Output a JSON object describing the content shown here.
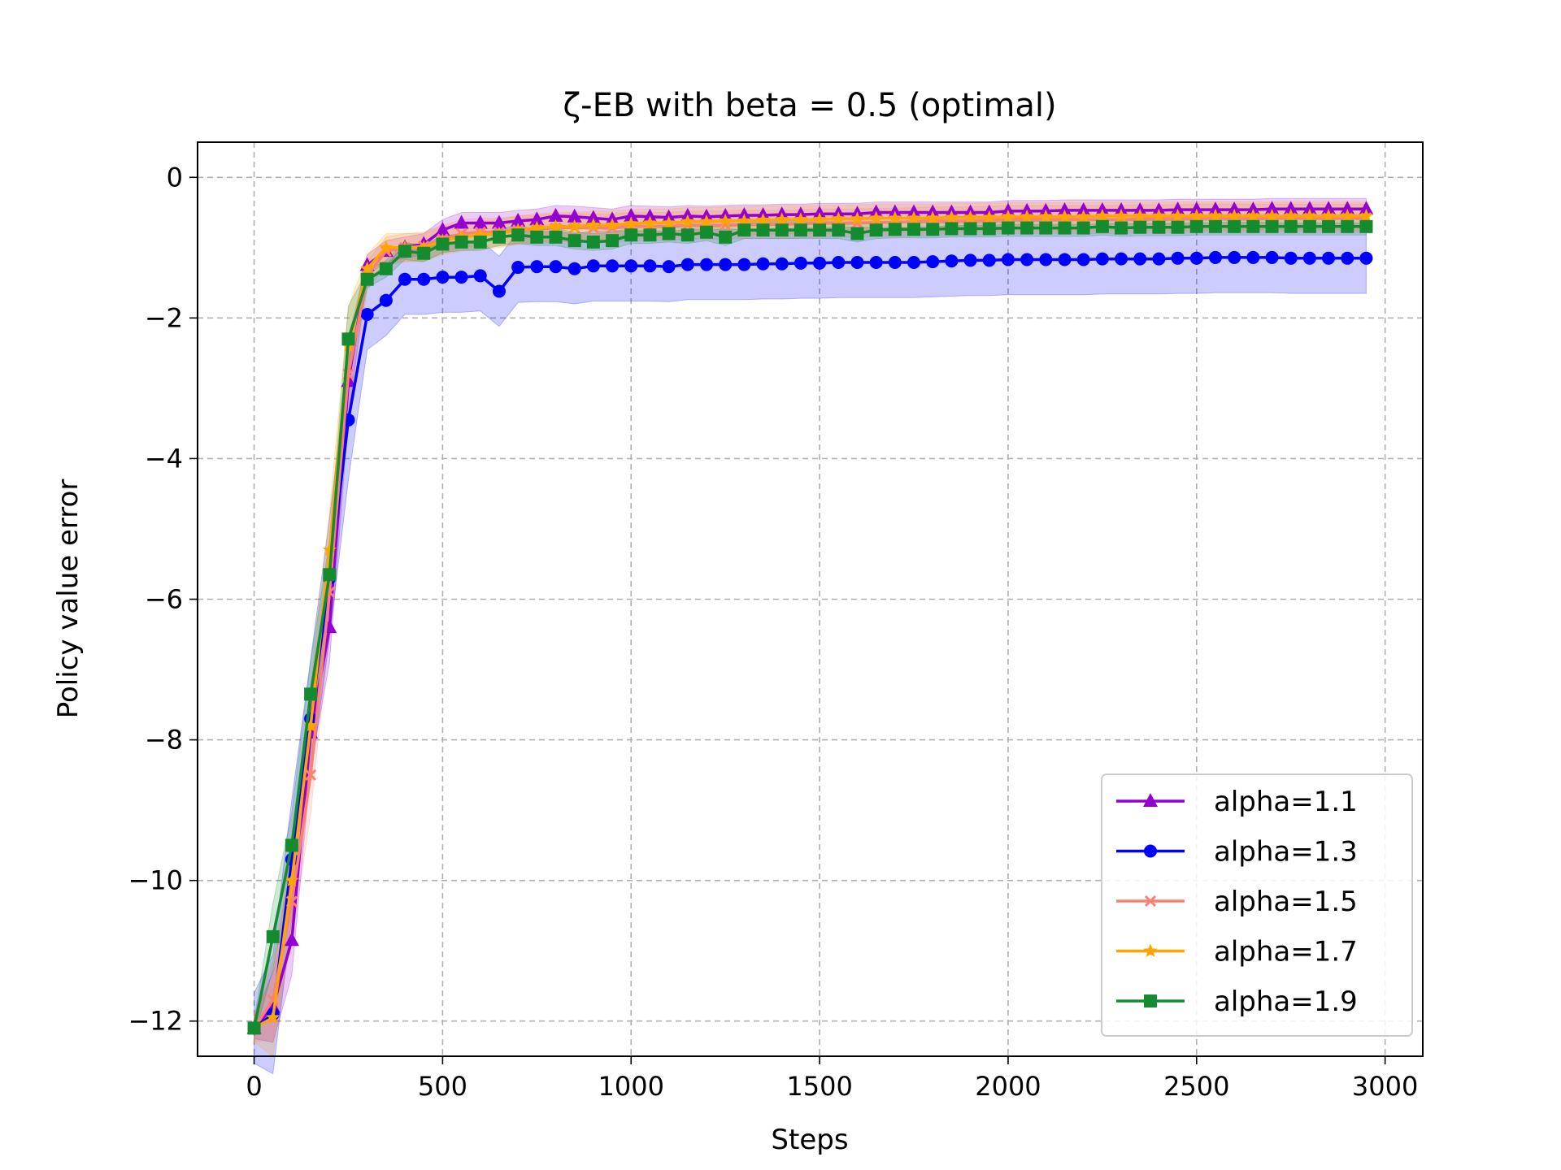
{
  "chart_data": {
    "type": "line",
    "title": "ζ-EB with beta = 0.5 (optimal)",
    "xlabel": "Steps",
    "ylabel": "Policy value error",
    "xlim": [
      -150,
      3100
    ],
    "ylim": [
      -12.5,
      0.5
    ],
    "xticks": [
      0,
      500,
      1000,
      1500,
      2000,
      2500,
      3000
    ],
    "yticks": [
      0,
      -2,
      -4,
      -6,
      -8,
      -10,
      -12
    ],
    "xtick_labels": [
      "0",
      "500",
      "1000",
      "1500",
      "2000",
      "2500",
      "3000"
    ],
    "ytick_labels": [
      "0",
      "−2",
      "−4",
      "−6",
      "−8",
      "−10",
      "−12"
    ],
    "grid": true,
    "legend_position": "lower-right",
    "x": [
      0,
      50,
      100,
      150,
      200,
      250,
      300,
      350,
      400,
      450,
      500,
      550,
      600,
      650,
      700,
      750,
      800,
      850,
      900,
      950,
      1000,
      1050,
      1100,
      1150,
      1200,
      1250,
      1300,
      1350,
      1400,
      1450,
      1500,
      1550,
      1600,
      1650,
      1700,
      1750,
      1800,
      1850,
      1900,
      1950,
      2000,
      2050,
      2100,
      2150,
      2200,
      2250,
      2300,
      2350,
      2400,
      2450,
      2500,
      2550,
      2600,
      2650,
      2700,
      2750,
      2800,
      2850,
      2900,
      2950
    ],
    "series": [
      {
        "name": "alpha=1.1",
        "color": "#9400d3",
        "marker": "triangle",
        "values": [
          -12.1,
          -11.8,
          -10.85,
          -7.9,
          -6.4,
          -2.9,
          -1.25,
          -1.05,
          -1.0,
          -0.95,
          -0.75,
          -0.65,
          -0.65,
          -0.65,
          -0.62,
          -0.6,
          -0.55,
          -0.56,
          -0.58,
          -0.6,
          -0.55,
          -0.56,
          -0.57,
          -0.55,
          -0.56,
          -0.55,
          -0.54,
          -0.54,
          -0.53,
          -0.53,
          -0.52,
          -0.52,
          -0.52,
          -0.5,
          -0.5,
          -0.5,
          -0.5,
          -0.5,
          -0.5,
          -0.5,
          -0.48,
          -0.48,
          -0.48,
          -0.47,
          -0.47,
          -0.47,
          -0.47,
          -0.47,
          -0.47,
          -0.46,
          -0.46,
          -0.46,
          -0.46,
          -0.46,
          -0.45,
          -0.45,
          -0.45,
          -0.45,
          -0.45,
          -0.45
        ],
        "band": 0.15
      },
      {
        "name": "alpha=1.3",
        "color": "#0000ff",
        "marker": "circle",
        "values": [
          -12.1,
          -11.9,
          -9.7,
          -7.7,
          -5.7,
          -3.45,
          -1.95,
          -1.75,
          -1.45,
          -1.45,
          -1.42,
          -1.42,
          -1.4,
          -1.62,
          -1.28,
          -1.27,
          -1.27,
          -1.3,
          -1.26,
          -1.26,
          -1.26,
          -1.26,
          -1.27,
          -1.24,
          -1.24,
          -1.24,
          -1.24,
          -1.23,
          -1.23,
          -1.22,
          -1.22,
          -1.21,
          -1.21,
          -1.21,
          -1.21,
          -1.21,
          -1.2,
          -1.19,
          -1.18,
          -1.18,
          -1.17,
          -1.17,
          -1.17,
          -1.17,
          -1.17,
          -1.16,
          -1.16,
          -1.16,
          -1.16,
          -1.15,
          -1.15,
          -1.14,
          -1.14,
          -1.14,
          -1.14,
          -1.15,
          -1.15,
          -1.15,
          -1.15,
          -1.15
        ],
        "band": 0.5
      },
      {
        "name": "alpha=1.5",
        "color": "#fa8072",
        "marker": "x",
        "values": [
          -12.1,
          -11.7,
          -10.3,
          -8.5,
          -5.9,
          -2.8,
          -1.4,
          -1.05,
          -1.0,
          -0.98,
          -0.88,
          -0.8,
          -0.78,
          -0.78,
          -0.75,
          -0.74,
          -0.72,
          -0.72,
          -0.72,
          -0.72,
          -0.7,
          -0.7,
          -0.7,
          -0.68,
          -0.68,
          -0.68,
          -0.67,
          -0.67,
          -0.67,
          -0.66,
          -0.65,
          -0.65,
          -0.65,
          -0.64,
          -0.64,
          -0.63,
          -0.62,
          -0.62,
          -0.62,
          -0.61,
          -0.6,
          -0.6,
          -0.6,
          -0.6,
          -0.6,
          -0.6,
          -0.6,
          -0.59,
          -0.59,
          -0.59,
          -0.58,
          -0.58,
          -0.58,
          -0.58,
          -0.58,
          -0.58,
          -0.58,
          -0.58,
          -0.58,
          -0.58
        ],
        "band": 0.2
      },
      {
        "name": "alpha=1.7",
        "color": "#ffa500",
        "marker": "star",
        "values": [
          -12.1,
          -11.95,
          -10.0,
          -7.8,
          -5.3,
          -2.4,
          -1.3,
          -1.0,
          -1.0,
          -1.0,
          -0.9,
          -0.85,
          -0.82,
          -0.8,
          -0.75,
          -0.72,
          -0.7,
          -0.7,
          -0.68,
          -0.68,
          -0.66,
          -0.65,
          -0.65,
          -0.63,
          -0.63,
          -0.62,
          -0.62,
          -0.61,
          -0.6,
          -0.6,
          -0.6,
          -0.59,
          -0.59,
          -0.58,
          -0.58,
          -0.58,
          -0.58,
          -0.57,
          -0.57,
          -0.57,
          -0.56,
          -0.56,
          -0.56,
          -0.56,
          -0.56,
          -0.55,
          -0.55,
          -0.55,
          -0.55,
          -0.55,
          -0.55,
          -0.55,
          -0.55,
          -0.55,
          -0.55,
          -0.55,
          -0.55,
          -0.55,
          -0.55,
          -0.55
        ],
        "band": 0.2
      },
      {
        "name": "alpha=1.9",
        "color": "#158b30",
        "marker": "square",
        "values": [
          -12.1,
          -10.8,
          -9.5,
          -7.35,
          -5.65,
          -2.3,
          -1.45,
          -1.3,
          -1.05,
          -1.08,
          -0.95,
          -0.92,
          -0.92,
          -0.85,
          -0.82,
          -0.85,
          -0.85,
          -0.9,
          -0.92,
          -0.9,
          -0.82,
          -0.82,
          -0.8,
          -0.82,
          -0.78,
          -0.85,
          -0.75,
          -0.75,
          -0.75,
          -0.75,
          -0.75,
          -0.75,
          -0.8,
          -0.75,
          -0.74,
          -0.74,
          -0.74,
          -0.73,
          -0.73,
          -0.73,
          -0.72,
          -0.72,
          -0.72,
          -0.72,
          -0.72,
          -0.7,
          -0.72,
          -0.71,
          -0.71,
          -0.71,
          -0.7,
          -0.7,
          -0.7,
          -0.7,
          -0.7,
          -0.7,
          -0.7,
          -0.7,
          -0.7,
          -0.7
        ],
        "band": 0.12
      }
    ]
  }
}
